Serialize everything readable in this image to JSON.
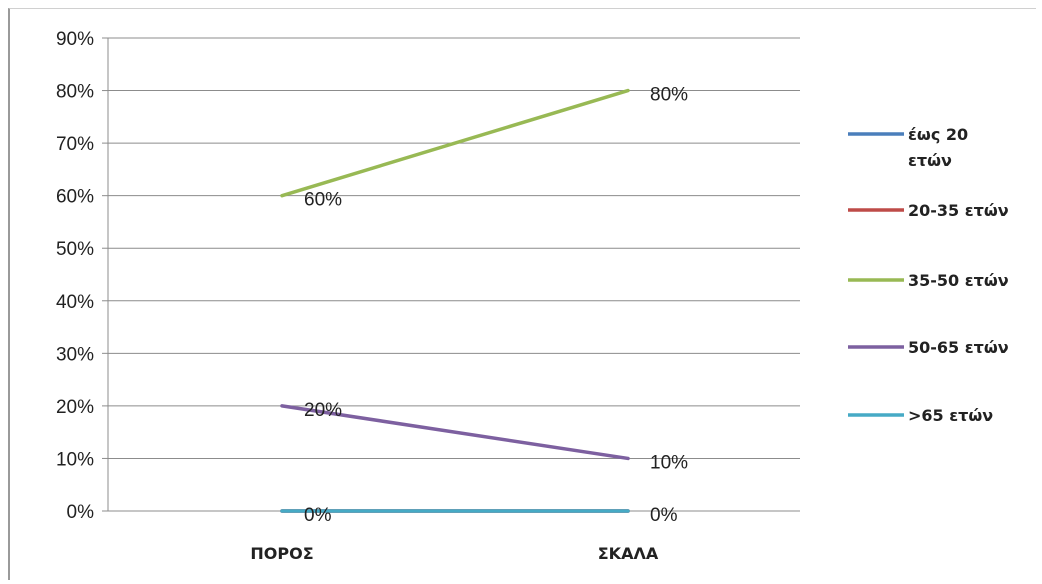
{
  "chart_data": {
    "type": "line",
    "categories": [
      "ΠΟΡΟΣ",
      "ΣΚΑΛΑ"
    ],
    "ylim": [
      0,
      90
    ],
    "y_ticks": [
      "0%",
      "10%",
      "20%",
      "30%",
      "40%",
      "50%",
      "60%",
      "70%",
      "80%",
      "90%"
    ],
    "grid": true,
    "legend_position": "right",
    "series": [
      {
        "name": "έως 20 ετών",
        "legend_lines": [
          "έως 20",
          "ετών"
        ],
        "values": [
          0,
          0
        ],
        "color": "#4a7ebb",
        "labels": [
          "",
          ""
        ]
      },
      {
        "name": "20-35 ετών",
        "legend_lines": [
          "20-35 ετών"
        ],
        "values": [
          0,
          0
        ],
        "color": "#be4b48",
        "labels": [
          "",
          ""
        ]
      },
      {
        "name": "35-50 ετών",
        "legend_lines": [
          "35-50 ετών"
        ],
        "values": [
          60,
          80
        ],
        "color": "#98b954",
        "labels": [
          "60%",
          "80%"
        ]
      },
      {
        "name": "50-65 ετών",
        "legend_lines": [
          "50-65 ετών"
        ],
        "values": [
          20,
          10
        ],
        "color": "#7d60a0",
        "labels": [
          "20%",
          "10%"
        ]
      },
      {
        "name": ">65 ετών",
        "legend_lines": [
          ">65 ετών"
        ],
        "values": [
          0,
          0
        ],
        "color": "#46aac5",
        "labels": [
          "0%",
          "0%"
        ]
      }
    ]
  }
}
